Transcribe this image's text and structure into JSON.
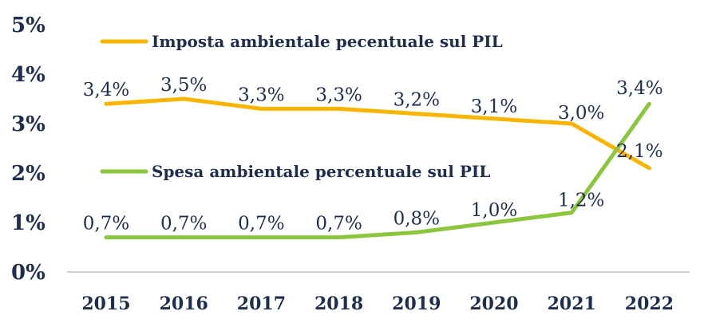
{
  "chart_data": {
    "type": "line",
    "x": [
      "2015",
      "2016",
      "2017",
      "2018",
      "2019",
      "2020",
      "2021",
      "2022"
    ],
    "ylim": [
      0,
      5
    ],
    "yticks": [
      "0%",
      "1%",
      "2%",
      "3%",
      "4%",
      "5%"
    ],
    "grid": false,
    "series": [
      {
        "name": "Imposta ambientale pecentuale sul PIL",
        "color": "#f7b500",
        "values": [
          3.4,
          3.5,
          3.3,
          3.3,
          3.2,
          3.1,
          3.0,
          2.1
        ],
        "labels": [
          "3,4%",
          "3,5%",
          "3,3%",
          "3,3%",
          "3,2%",
          "3,1%",
          "3,0%",
          "2,1%"
        ]
      },
      {
        "name": "Spesa ambientale percentuale sul PIL",
        "color": "#8cc63e",
        "values": [
          0.7,
          0.7,
          0.7,
          0.7,
          0.8,
          1.0,
          1.2,
          3.4
        ],
        "labels": [
          "0,7%",
          "0,7%",
          "0,7%",
          "0,7%",
          "0,8%",
          "1,0%",
          "1,2%",
          "3,4%"
        ]
      }
    ]
  }
}
